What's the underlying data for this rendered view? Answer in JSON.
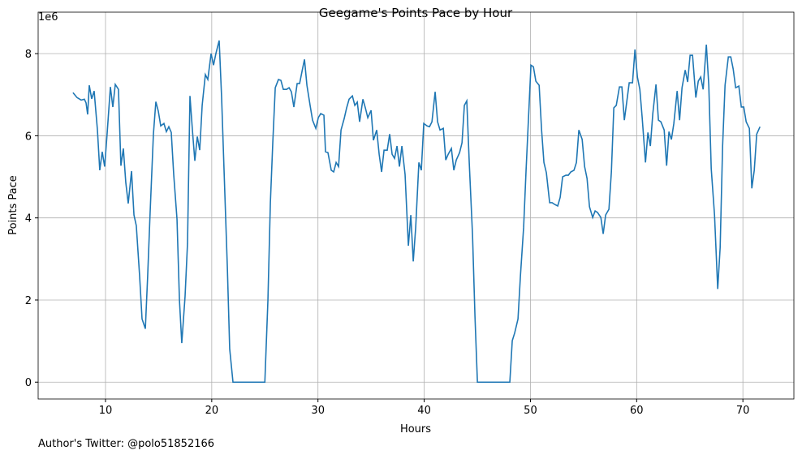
{
  "chart_data": {
    "type": "line",
    "title": "Geegame's Points Pace by Hour",
    "x_label": "Hours",
    "y_label": "Points Pace",
    "y_offset_label": "1e6",
    "footer": "Author's Twitter: @polo51852166",
    "color": "#1f77b4",
    "grid": true,
    "xlim": [
      3.66,
      74.8
    ],
    "ylim": [
      -0.41,
      9.01
    ],
    "xticks": [
      10,
      20,
      30,
      40,
      50,
      60,
      70
    ],
    "yticks": [
      0,
      2,
      4,
      6,
      8
    ],
    "x": [
      6.94,
      7.32,
      7.71,
      8.01,
      8.17,
      8.32,
      8.47,
      8.7,
      8.93,
      9.24,
      9.46,
      9.69,
      9.92,
      10.15,
      10.46,
      10.69,
      10.92,
      11.22,
      11.45,
      11.68,
      11.91,
      12.14,
      12.45,
      12.68,
      12.9,
      13.21,
      13.44,
      13.75,
      13.97,
      14.2,
      14.51,
      14.74,
      14.97,
      15.2,
      15.5,
      15.73,
      15.96,
      16.19,
      16.42,
      16.73,
      16.96,
      17.18,
      17.49,
      17.72,
      17.95,
      18.18,
      18.41,
      18.64,
      18.87,
      19.1,
      19.4,
      19.63,
      19.94,
      20.17,
      20.39,
      20.7,
      20.93,
      21.16,
      21.47,
      21.69,
      22.0,
      23.0,
      24.0,
      25.0,
      25.29,
      25.52,
      25.75,
      25.98,
      26.28,
      26.51,
      26.74,
      27.05,
      27.28,
      27.5,
      27.73,
      28.04,
      28.27,
      28.5,
      28.73,
      28.96,
      29.26,
      29.49,
      29.8,
      30.03,
      30.26,
      30.56,
      30.71,
      30.94,
      31.25,
      31.48,
      31.71,
      31.94,
      32.17,
      32.47,
      32.7,
      32.93,
      33.24,
      33.47,
      33.7,
      33.92,
      34.23,
      34.46,
      34.69,
      35.0,
      35.22,
      35.53,
      35.76,
      35.99,
      36.22,
      36.52,
      36.75,
      36.98,
      37.21,
      37.44,
      37.67,
      37.9,
      38.2,
      38.51,
      38.74,
      38.97,
      39.2,
      39.5,
      39.73,
      39.96,
      40.27,
      40.5,
      40.73,
      41.03,
      41.26,
      41.49,
      41.8,
      42.03,
      42.26,
      42.56,
      42.79,
      43.02,
      43.33,
      43.56,
      43.78,
      44.01,
      44.24,
      44.55,
      44.78,
      45.01,
      46.0,
      47.0,
      48.06,
      48.29,
      48.52,
      48.83,
      49.06,
      49.36,
      49.59,
      49.82,
      50.05,
      50.28,
      50.51,
      50.82,
      51.05,
      51.27,
      51.5,
      51.81,
      52.04,
      52.27,
      52.57,
      52.8,
      53.03,
      53.34,
      53.57,
      53.8,
      54.1,
      54.33,
      54.56,
      54.87,
      55.1,
      55.33,
      55.56,
      55.86,
      56.09,
      56.32,
      56.63,
      56.85,
      57.08,
      57.39,
      57.62,
      57.85,
      58.08,
      58.38,
      58.61,
      58.84,
      59.07,
      59.3,
      59.61,
      59.84,
      60.07,
      60.3,
      60.52,
      60.83,
      61.06,
      61.29,
      61.52,
      61.82,
      62.05,
      62.28,
      62.59,
      62.82,
      63.04,
      63.27,
      63.5,
      63.81,
      64.04,
      64.27,
      64.57,
      64.8,
      65.03,
      65.26,
      65.57,
      65.8,
      66.03,
      66.26,
      66.56,
      66.79,
      67.02,
      67.33,
      67.63,
      67.86,
      68.09,
      68.32,
      68.63,
      68.86,
      69.09,
      69.32,
      69.62,
      69.85,
      70.08,
      70.31,
      70.61,
      70.84,
      71.07,
      71.3,
      71.61
    ],
    "values": [
      7.05,
      6.93,
      6.87,
      6.89,
      6.8,
      6.52,
      7.23,
      6.9,
      7.09,
      6.14,
      5.16,
      5.61,
      5.25,
      6.04,
      7.19,
      6.7,
      7.25,
      7.13,
      5.27,
      5.69,
      4.86,
      4.35,
      5.14,
      4.07,
      3.81,
      2.59,
      1.54,
      1.3,
      2.59,
      4.13,
      6.04,
      6.83,
      6.6,
      6.24,
      6.3,
      6.1,
      6.22,
      6.08,
      5.06,
      3.97,
      2.0,
      0.95,
      2.09,
      3.38,
      6.97,
      6.14,
      5.39,
      5.98,
      5.65,
      6.74,
      7.49,
      7.37,
      8.0,
      7.72,
      8.0,
      8.32,
      6.93,
      5.16,
      2.79,
      0.81,
      0,
      0,
      0,
      0,
      2.0,
      4.37,
      5.85,
      7.17,
      7.37,
      7.35,
      7.13,
      7.13,
      7.17,
      7.07,
      6.7,
      7.27,
      7.27,
      7.57,
      7.86,
      7.23,
      6.74,
      6.38,
      6.18,
      6.44,
      6.54,
      6.5,
      5.61,
      5.59,
      5.16,
      5.12,
      5.35,
      5.25,
      6.14,
      6.42,
      6.68,
      6.89,
      6.97,
      6.74,
      6.82,
      6.34,
      6.89,
      6.68,
      6.44,
      6.62,
      5.89,
      6.14,
      5.55,
      5.12,
      5.65,
      5.65,
      6.04,
      5.55,
      5.45,
      5.75,
      5.25,
      5.75,
      5.06,
      3.32,
      4.07,
      2.94,
      3.77,
      5.35,
      5.16,
      6.3,
      6.24,
      6.22,
      6.34,
      7.07,
      6.34,
      6.14,
      6.18,
      5.41,
      5.55,
      5.69,
      5.16,
      5.41,
      5.59,
      5.83,
      6.74,
      6.85,
      5.35,
      3.58,
      1.6,
      0,
      0,
      0,
      0,
      1.01,
      1.2,
      1.54,
      2.59,
      3.77,
      5.16,
      6.44,
      7.72,
      7.68,
      7.33,
      7.23,
      6.14,
      5.35,
      5.1,
      4.37,
      4.37,
      4.33,
      4.29,
      4.5,
      5.0,
      5.04,
      5.04,
      5.12,
      5.16,
      5.35,
      6.14,
      5.91,
      5.25,
      4.96,
      4.27,
      4.01,
      4.17,
      4.13,
      4.01,
      3.61,
      4.07,
      4.21,
      5.12,
      6.68,
      6.74,
      7.19,
      7.19,
      6.38,
      6.83,
      7.29,
      7.29,
      8.1,
      7.43,
      7.13,
      6.44,
      5.35,
      6.08,
      5.75,
      6.54,
      7.25,
      6.38,
      6.34,
      6.14,
      5.27,
      6.1,
      5.91,
      6.3,
      7.09,
      6.38,
      7.17,
      7.6,
      7.31,
      7.96,
      7.96,
      6.93,
      7.33,
      7.43,
      7.13,
      8.22,
      7.23,
      5.2,
      4.07,
      2.27,
      3.28,
      5.75,
      7.23,
      7.92,
      7.92,
      7.62,
      7.17,
      7.21,
      6.7,
      6.7,
      6.34,
      6.18,
      4.72,
      5.16,
      6.04,
      6.22
    ]
  }
}
